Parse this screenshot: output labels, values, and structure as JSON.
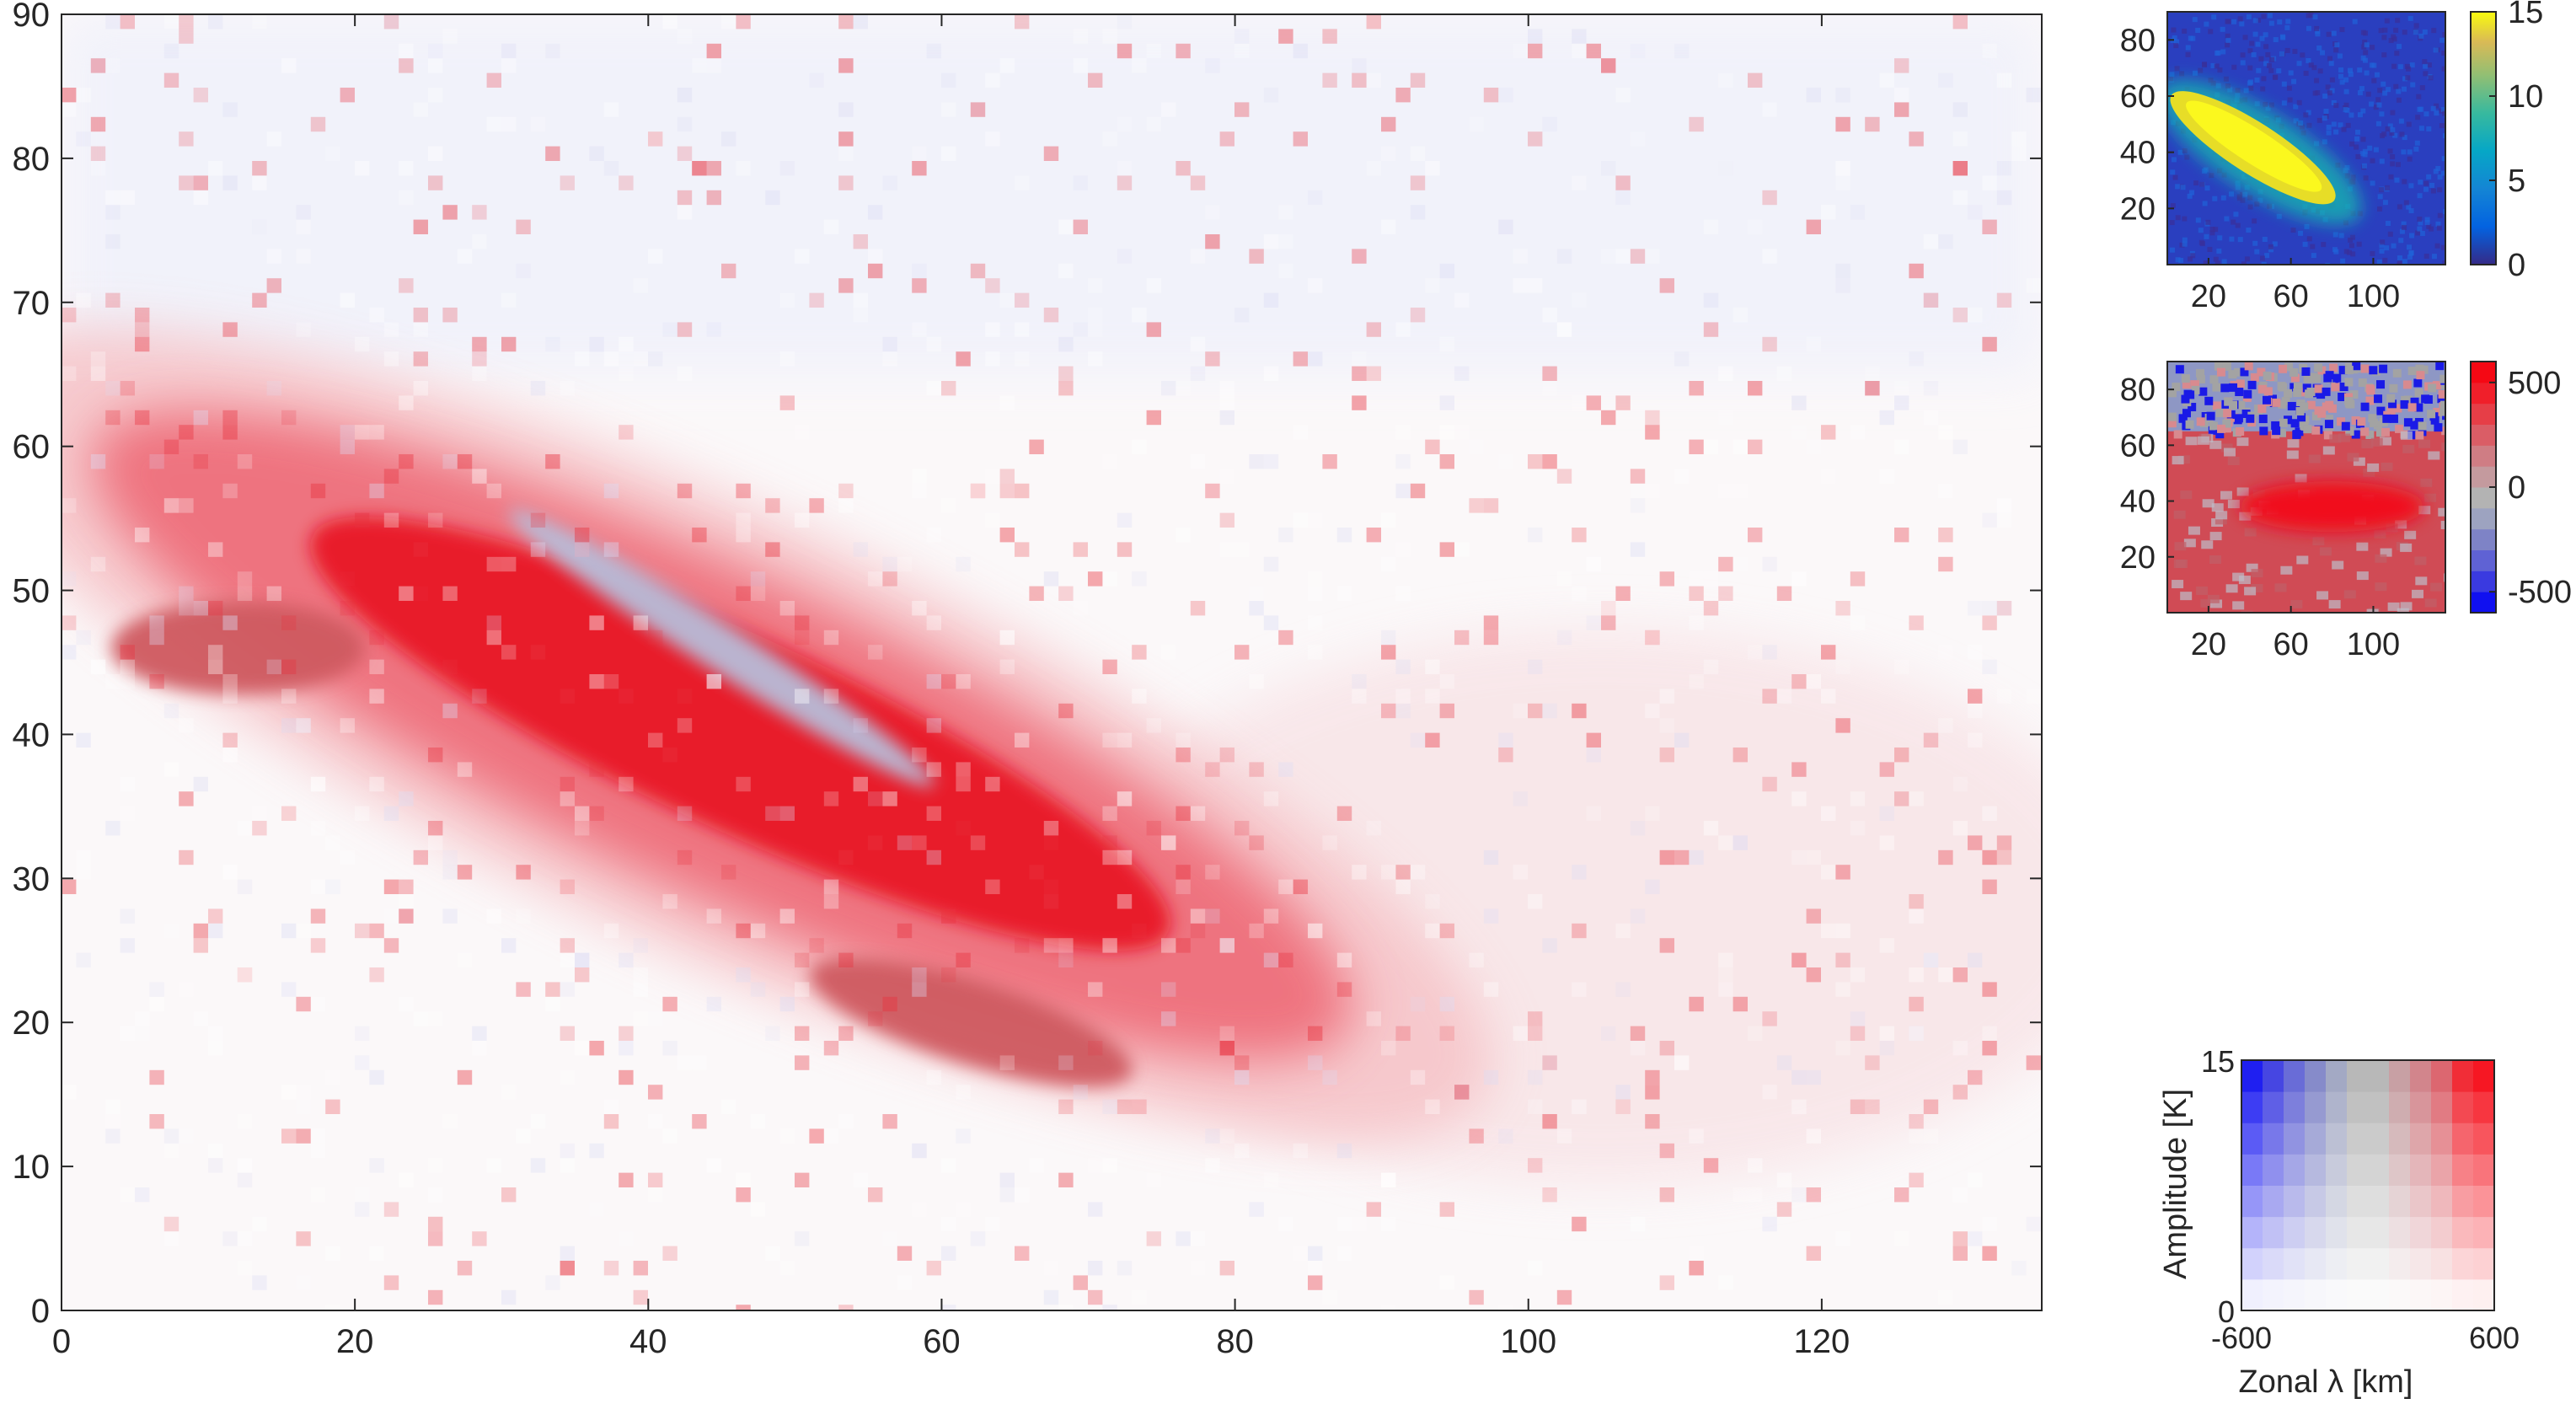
{
  "chart_data": [
    {
      "type": "heatmap",
      "title": "",
      "xlabel": "",
      "ylabel": "",
      "xlim": [
        0,
        135
      ],
      "ylim": [
        0,
        90
      ],
      "xticks": [
        0,
        20,
        40,
        60,
        80,
        100,
        120
      ],
      "yticks": [
        0,
        10,
        20,
        30,
        40,
        50,
        60,
        70,
        80,
        90
      ],
      "colormap": "bivariate: hue = zonal wavelength (blue -600 km, grey 0, red 600 km), saturation = amplitude (0-15 K)",
      "regions": [
        {
          "label": "main wave packet",
          "center": [
            45,
            40
          ],
          "extent_x": [
            5,
            85
          ],
          "extent_y": [
            12,
            60
          ],
          "tilt": "up-left to down-right",
          "zonal_lambda_km": 500,
          "amplitude_K": 12
        },
        {
          "label": "darker core west",
          "center": [
            12,
            46
          ],
          "zonal_lambda_km": 300,
          "amplitude_K": 14
        },
        {
          "label": "darker core south-east",
          "center": [
            62,
            20
          ],
          "zonal_lambda_km": 300,
          "amplitude_K": 14
        },
        {
          "label": "grey-blue streak",
          "center": [
            45,
            46
          ],
          "extent_x": [
            30,
            60
          ],
          "zonal_lambda_km": -100,
          "amplitude_K": 9
        },
        {
          "label": "upper region",
          "extent_y": [
            65,
            90
          ],
          "zonal_lambda_km": -300,
          "amplitude_K": 1.5
        }
      ],
      "grid": false
    },
    {
      "type": "heatmap",
      "title": "",
      "xlabel": "",
      "ylabel": "",
      "xticks": [
        20,
        60,
        100
      ],
      "yticks": [
        20,
        40,
        60,
        80
      ],
      "colorbar": {
        "min": 0,
        "max": 15,
        "ticks": [
          "0",
          "5",
          "10",
          "15"
        ],
        "colormap": "parula"
      },
      "note_values": {
        "packet_amplitude": 15,
        "background_amplitude": 1
      }
    },
    {
      "type": "heatmap",
      "title": "",
      "xlabel": "",
      "ylabel": "",
      "xticks": [
        20,
        60,
        100
      ],
      "yticks": [
        20,
        40,
        60,
        80
      ],
      "colorbar": {
        "min": -600,
        "max": 600,
        "ticks": [
          "500",
          "0",
          "-500"
        ],
        "colormap": "blue-grey-red"
      },
      "note_values": {
        "lower_region_lambda": 450,
        "upper_region_lambda": -300
      }
    },
    {
      "type": "heatmap",
      "title": "",
      "xlabel": "Zonal λ [km]",
      "ylabel": "Amplitude [K]",
      "xticks": [
        "-600",
        "600"
      ],
      "yticks": [
        "0",
        "15"
      ],
      "colorbar_legend": true
    }
  ],
  "palette": {
    "red": "#e8001f",
    "blue": "#0018ee",
    "grey": "#aaaaaa",
    "axis": "#262626"
  }
}
